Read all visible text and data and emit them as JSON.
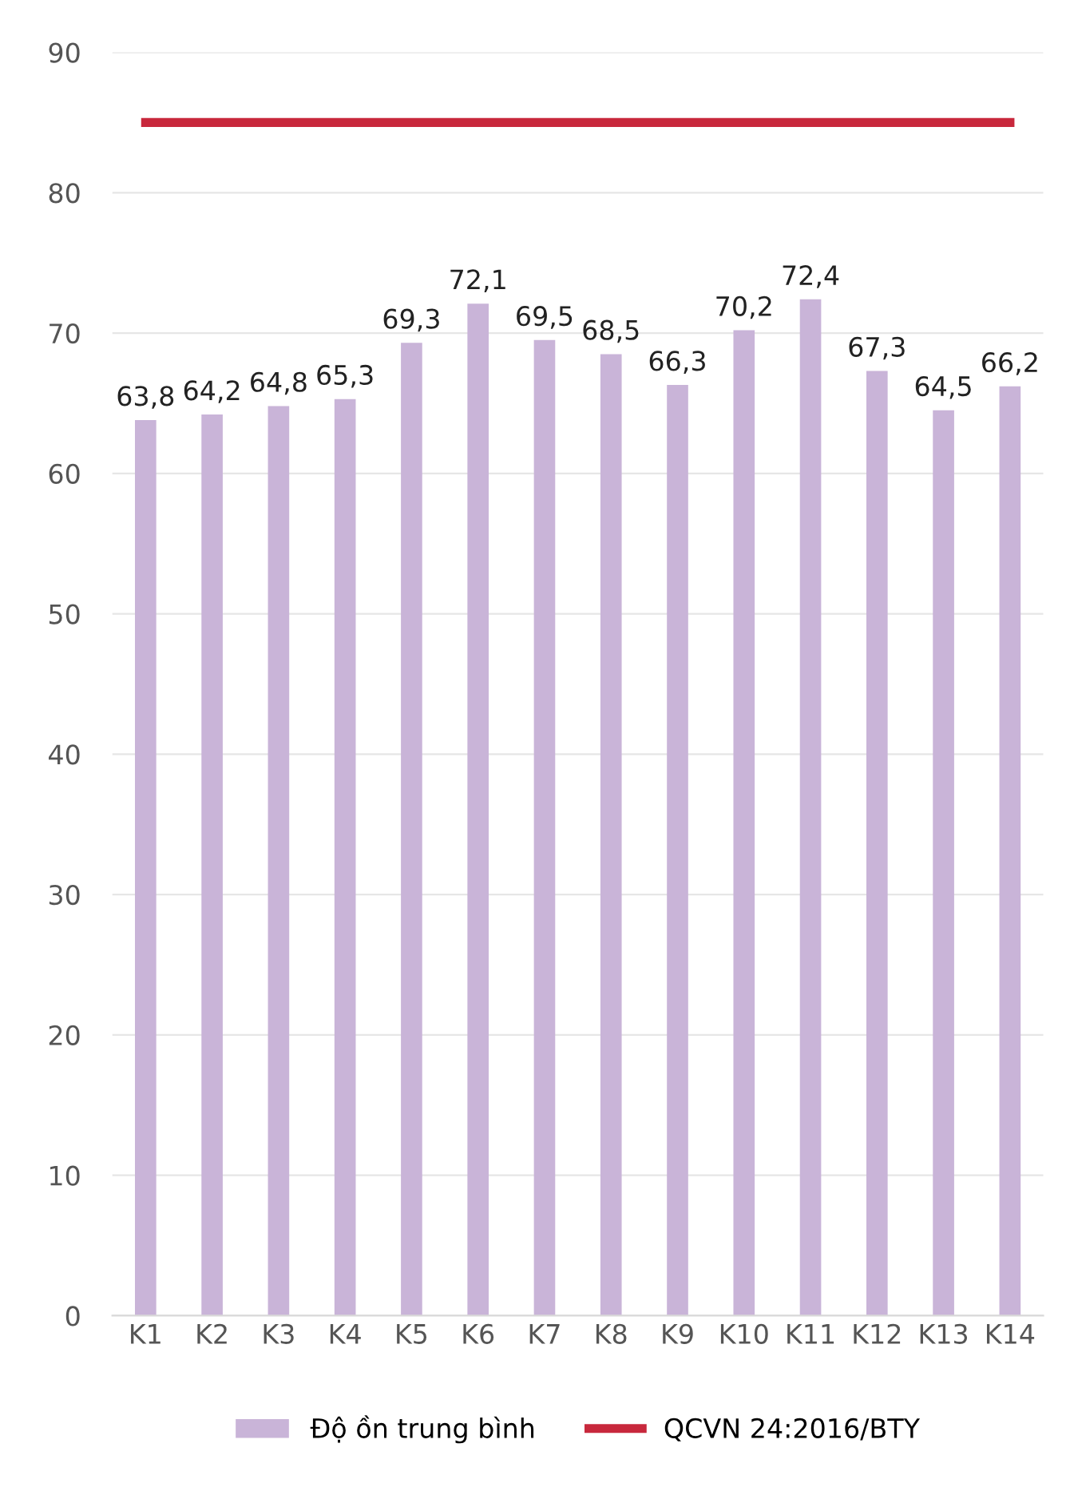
{
  "chart_data": {
    "type": "bar",
    "categories": [
      "K1",
      "K2",
      "K3",
      "K4",
      "K5",
      "K6",
      "K7",
      "K8",
      "K9",
      "K10",
      "K11",
      "K12",
      "K13",
      "K14"
    ],
    "series": [
      {
        "name": "Độ ồn trung bình",
        "color": "#c9b4d8",
        "values": [
          63.8,
          64.2,
          64.8,
          65.3,
          69.3,
          72.1,
          69.5,
          68.5,
          66.3,
          70.2,
          72.4,
          67.3,
          64.5,
          66.2
        ],
        "value_labels": [
          "63,8",
          "64,2",
          "64,8",
          "65,3",
          "69,3",
          "72,1",
          "69,5",
          "68,5",
          "66,3",
          "70,2",
          "72,4",
          "67,3",
          "64,5",
          "66,2"
        ]
      },
      {
        "name": "QCVN 24:2016/BTY",
        "type": "line",
        "color": "#c8283c",
        "values": [
          85,
          85,
          85,
          85,
          85,
          85,
          85,
          85,
          85,
          85,
          85,
          85,
          85,
          85
        ]
      }
    ],
    "ylim": [
      0,
      90
    ],
    "yticks": [
      0,
      10,
      20,
      30,
      40,
      50,
      60,
      70,
      80,
      90
    ],
    "grid": "y",
    "legend": "bottom"
  }
}
